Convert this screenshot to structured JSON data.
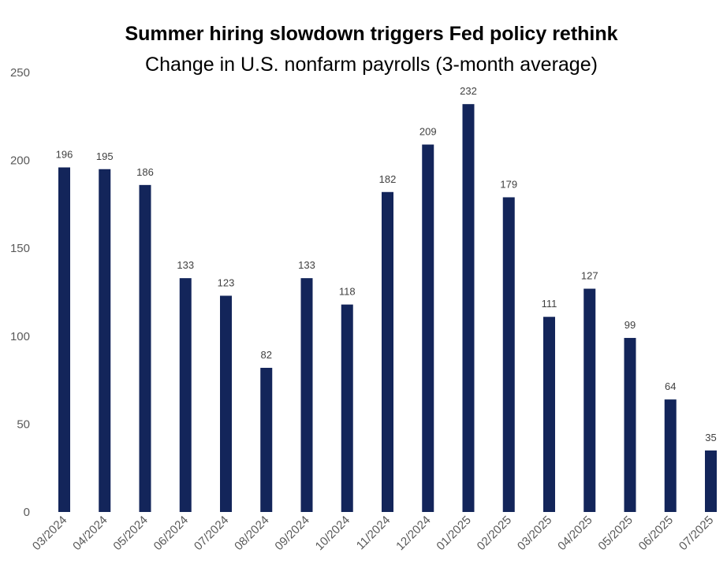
{
  "chart_data": {
    "type": "bar",
    "title": "Summer hiring slowdown triggers Fed policy rethink",
    "subtitle": "Change in U.S. nonfarm payrolls (3-month average)",
    "xlabel": "",
    "ylabel": "",
    "categories": [
      "03/2024",
      "04/2024",
      "05/2024",
      "06/2024",
      "07/2024",
      "08/2024",
      "09/2024",
      "10/2024",
      "11/2024",
      "12/2024",
      "01/2025",
      "02/2025",
      "03/2025",
      "04/2025",
      "05/2025",
      "06/2025",
      "07/2025"
    ],
    "values": [
      196,
      195,
      186,
      133,
      123,
      82,
      133,
      118,
      182,
      209,
      232,
      179,
      111,
      127,
      99,
      64,
      35
    ],
    "ylim": [
      0,
      250
    ],
    "yticks": [
      0,
      50,
      100,
      150,
      200,
      250
    ],
    "bar_color": "#13255a",
    "grid": false,
    "legend": "none"
  }
}
